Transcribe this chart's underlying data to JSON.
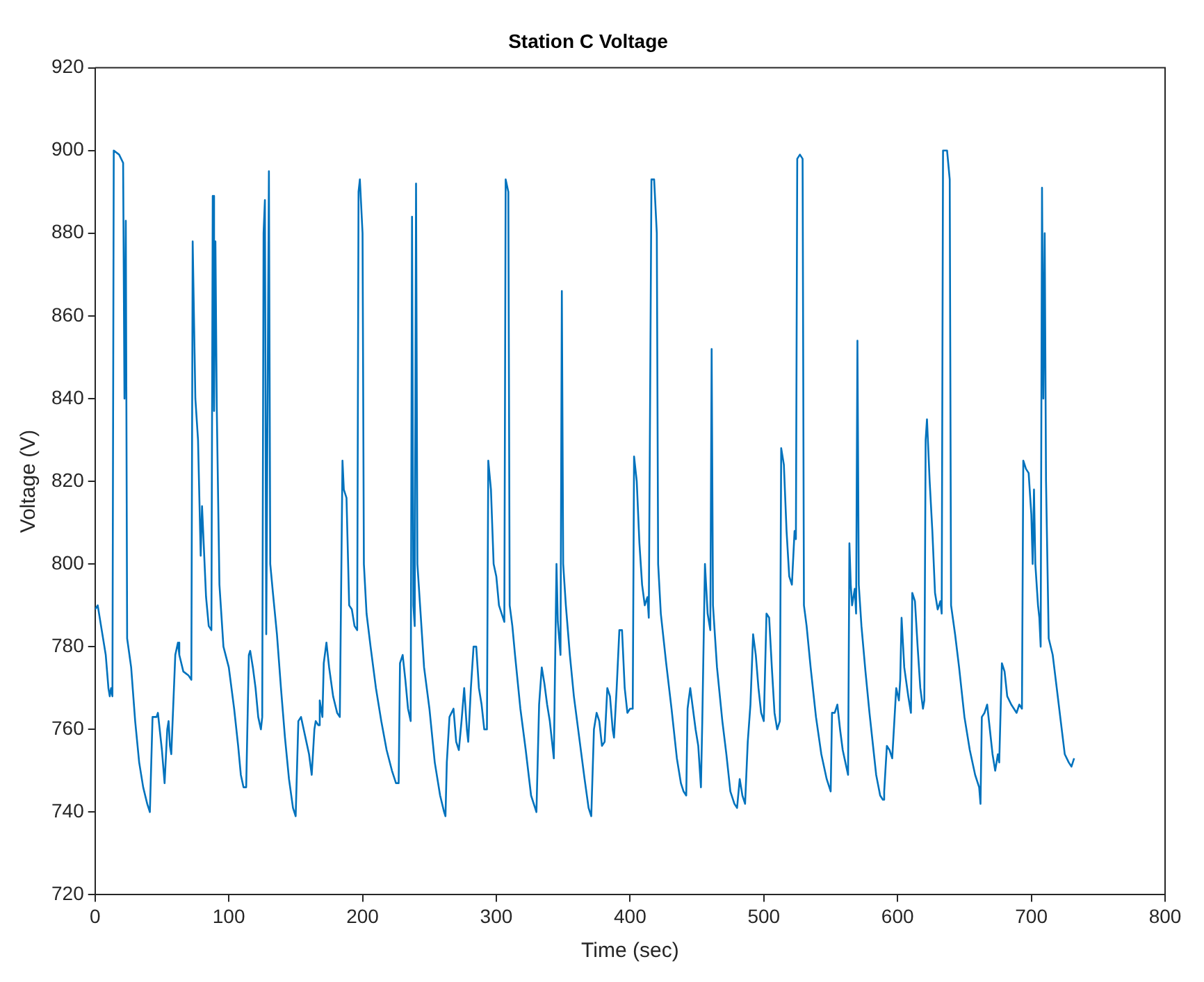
{
  "chart_data": {
    "type": "line",
    "title": "Station C Voltage",
    "xlabel": "Time (sec)",
    "ylabel": "Voltage (V)",
    "xlim": [
      0,
      800
    ],
    "xticks": [
      0,
      100,
      200,
      300,
      400,
      500,
      600,
      700,
      800
    ],
    "ylim": [
      720,
      920
    ],
    "yticks": [
      720,
      740,
      760,
      780,
      800,
      820,
      840,
      860,
      880,
      900,
      920
    ],
    "grid": false,
    "legend": false,
    "marker": "none",
    "line_style": "solid",
    "series": [
      {
        "color": "#0072bd",
        "x": [
          0,
          2,
          5,
          8,
          10,
          11,
          12,
          13,
          14,
          18,
          21,
          22,
          23,
          24,
          27,
          30,
          33,
          36,
          39,
          41,
          43,
          46,
          47,
          50,
          52,
          54,
          55,
          56,
          57,
          60,
          62,
          63,
          66,
          70,
          72,
          73,
          75,
          77,
          79,
          80,
          83,
          85,
          87,
          88,
          89,
          90,
          91,
          93,
          96,
          100,
          104,
          107,
          109,
          111,
          113,
          115,
          116,
          118,
          120,
          122,
          124,
          125,
          126,
          127,
          128,
          130,
          131,
          133,
          136,
          139,
          142,
          145,
          148,
          150,
          152,
          154,
          156,
          158,
          160,
          162,
          164,
          165,
          167,
          168,
          169,
          170,
          171,
          173,
          175,
          178,
          181,
          183,
          185,
          186,
          188,
          190,
          192,
          194,
          196,
          197,
          198,
          200,
          201,
          203,
          206,
          210,
          214,
          218,
          222,
          225,
          227,
          228,
          230,
          232,
          234,
          236,
          237,
          238,
          239,
          240,
          241,
          243,
          246,
          250,
          254,
          258,
          261,
          262,
          263,
          265,
          268,
          270,
          272,
          274,
          276,
          278,
          279,
          281,
          283,
          285,
          287,
          289,
          291,
          293,
          294,
          296,
          298,
          300,
          302,
          304,
          306,
          307,
          309,
          310,
          312,
          314,
          318,
          322,
          326,
          329,
          330,
          332,
          334,
          336,
          338,
          340,
          342,
          343,
          345,
          346,
          347,
          348,
          349,
          350,
          352,
          355,
          358,
          362,
          366,
          369,
          371,
          373,
          375,
          377,
          379,
          381,
          383,
          385,
          387,
          388,
          390,
          392,
          394,
          396,
          398,
          400,
          402,
          403,
          405,
          407,
          409,
          411,
          413,
          414,
          416,
          418,
          420,
          421,
          423,
          427,
          431,
          435,
          438,
          440,
          442,
          443,
          445,
          447,
          449,
          451,
          453,
          454,
          456,
          458,
          460,
          461,
          462,
          465,
          469,
          472,
          475,
          478,
          480,
          482,
          484,
          486,
          488,
          490,
          492,
          494,
          496,
          498,
          500,
          502,
          504,
          506,
          508,
          510,
          512,
          513,
          515,
          517,
          519,
          521,
          523,
          524,
          525,
          527,
          529,
          530,
          532,
          535,
          539,
          543,
          547,
          549,
          550,
          551,
          553,
          555,
          557,
          559,
          561,
          563,
          564,
          565,
          566,
          568,
          569,
          570,
          571,
          573,
          576,
          579,
          582,
          584,
          587,
          589,
          590,
          592,
          594,
          596,
          599,
          601,
          602,
          603,
          605,
          608,
          610,
          611,
          613,
          615,
          617,
          619,
          620,
          621,
          622,
          624,
          626,
          628,
          630,
          632,
          633,
          634,
          637,
          639,
          640,
          643,
          646,
          650,
          654,
          658,
          661,
          662,
          663,
          665,
          667,
          669,
          671,
          673,
          675,
          676,
          678,
          680,
          682,
          685,
          687,
          689,
          691,
          693,
          694,
          696,
          698,
          700,
          701,
          702,
          703,
          705,
          706,
          707,
          708,
          709,
          710,
          711,
          713,
          716,
          719,
          722,
          725,
          728,
          730,
          731,
          732
        ],
        "values": [
          789,
          790,
          784,
          778,
          770,
          768,
          770,
          768,
          900,
          899,
          897,
          840,
          883,
          782,
          775,
          762,
          752,
          746,
          742,
          740,
          763,
          763,
          764,
          755,
          747,
          760,
          762,
          756,
          754,
          778,
          781,
          778,
          774,
          773,
          772,
          878,
          840,
          830,
          802,
          814,
          792,
          785,
          784,
          889,
          837,
          878,
          838,
          795,
          780,
          775,
          765,
          756,
          749,
          746,
          746,
          778,
          779,
          775,
          770,
          763,
          760,
          763,
          880,
          888,
          783,
          895,
          800,
          793,
          783,
          770,
          758,
          748,
          741,
          739,
          762,
          763,
          760,
          757,
          754,
          749,
          760,
          762,
          761,
          767,
          765,
          763,
          776,
          781,
          775,
          768,
          764,
          763,
          825,
          818,
          816,
          790,
          789,
          785,
          784,
          890,
          893,
          880,
          800,
          788,
          780,
          770,
          762,
          755,
          750,
          747,
          747,
          776,
          778,
          772,
          765,
          762,
          884,
          790,
          785,
          892,
          800,
          790,
          775,
          765,
          752,
          744,
          740,
          739,
          752,
          763,
          765,
          757,
          755,
          762,
          770,
          760,
          757,
          770,
          780,
          780,
          770,
          766,
          760,
          760,
          825,
          818,
          800,
          797,
          790,
          788,
          786,
          893,
          890,
          790,
          785,
          778,
          765,
          755,
          744,
          741,
          740,
          766,
          775,
          771,
          766,
          762,
          756,
          753,
          800,
          786,
          782,
          778,
          866,
          800,
          790,
          778,
          768,
          758,
          748,
          741,
          739,
          760,
          764,
          762,
          756,
          757,
          770,
          768,
          760,
          758,
          770,
          784,
          784,
          770,
          764,
          765,
          765,
          826,
          820,
          805,
          795,
          790,
          792,
          787,
          893,
          893,
          880,
          800,
          788,
          776,
          765,
          753,
          747,
          745,
          744,
          765,
          770,
          765,
          760,
          756,
          746,
          762,
          800,
          788,
          784,
          852,
          790,
          775,
          762,
          754,
          745,
          742,
          741,
          748,
          744,
          742,
          757,
          766,
          783,
          778,
          770,
          764,
          762,
          788,
          787,
          775,
          764,
          760,
          762,
          828,
          824,
          808,
          797,
          795,
          808,
          806,
          898,
          899,
          898,
          790,
          785,
          775,
          763,
          754,
          748,
          746,
          745,
          764,
          764,
          766,
          760,
          755,
          752,
          749,
          805,
          795,
          790,
          794,
          788,
          854,
          795,
          785,
          774,
          764,
          755,
          749,
          744,
          743,
          745,
          756,
          755,
          753,
          770,
          767,
          772,
          787,
          775,
          768,
          764,
          793,
          791,
          780,
          770,
          765,
          767,
          830,
          835,
          820,
          808,
          793,
          789,
          791,
          788,
          900,
          900,
          893,
          790,
          783,
          775,
          763,
          755,
          749,
          746,
          742,
          763,
          764,
          766,
          760,
          754,
          750,
          754,
          752,
          776,
          774,
          768,
          766,
          765,
          764,
          766,
          765,
          825,
          823,
          822,
          812,
          800,
          818,
          800,
          790,
          787,
          780,
          891,
          840,
          880,
          820,
          782,
          778,
          770,
          762,
          754,
          752,
          751,
          752,
          753
        ]
      }
    ]
  }
}
